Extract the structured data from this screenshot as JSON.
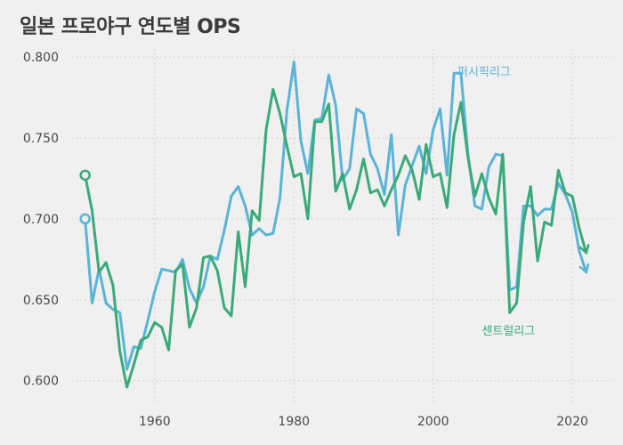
{
  "chart_data": {
    "type": "line",
    "title": "일본 프로야구 연도별 OPS",
    "xlabel": "",
    "ylabel": "",
    "xlim": [
      1948,
      2026
    ],
    "ylim": [
      0.585,
      0.805
    ],
    "x_ticks": [
      1960,
      1980,
      2000,
      2020
    ],
    "y_ticks": [
      0.6,
      0.65,
      0.7,
      0.75,
      0.8
    ],
    "y_tick_labels": [
      "0.600",
      "0.650",
      "0.700",
      "0.750",
      "0.800"
    ],
    "grid": true,
    "series": [
      {
        "name": "퍼시픽리그",
        "color": "#5ab4d8",
        "x": [
          1950,
          1951,
          1952,
          1953,
          1954,
          1955,
          1956,
          1957,
          1958,
          1959,
          1960,
          1961,
          1962,
          1963,
          1964,
          1965,
          1966,
          1967,
          1968,
          1969,
          1970,
          1971,
          1972,
          1973,
          1974,
          1975,
          1976,
          1977,
          1978,
          1979,
          1980,
          1981,
          1982,
          1983,
          1984,
          1985,
          1986,
          1987,
          1988,
          1989,
          1990,
          1991,
          1992,
          1993,
          1994,
          1995,
          1996,
          1997,
          1998,
          1999,
          2000,
          2001,
          2002,
          2003,
          2004,
          2005,
          2006,
          2007,
          2008,
          2009,
          2010,
          2011,
          2012,
          2013,
          2014,
          2015,
          2016,
          2017,
          2018,
          2019,
          2020,
          2021,
          2022
        ],
        "values": [
          0.7,
          0.648,
          0.669,
          0.648,
          0.644,
          0.642,
          0.607,
          0.621,
          0.62,
          0.637,
          0.655,
          0.669,
          0.668,
          0.667,
          0.675,
          0.657,
          0.648,
          0.658,
          0.677,
          0.675,
          0.693,
          0.714,
          0.72,
          0.708,
          0.69,
          0.694,
          0.69,
          0.691,
          0.713,
          0.767,
          0.797,
          0.748,
          0.728,
          0.761,
          0.762,
          0.789,
          0.77,
          0.724,
          0.731,
          0.768,
          0.765,
          0.74,
          0.731,
          0.715,
          0.752,
          0.69,
          0.721,
          0.733,
          0.745,
          0.728,
          0.755,
          0.768,
          0.727,
          0.79,
          0.79,
          0.74,
          0.708,
          0.706,
          0.732,
          0.74,
          0.739,
          0.656,
          0.658,
          0.708,
          0.708,
          0.702,
          0.706,
          0.706,
          0.722,
          0.715,
          0.704,
          0.68,
          0.667
        ]
      },
      {
        "name": "센트럴리그",
        "color": "#3aaa78",
        "x": [
          1950,
          1951,
          1952,
          1953,
          1954,
          1955,
          1956,
          1957,
          1958,
          1959,
          1960,
          1961,
          1962,
          1963,
          1964,
          1965,
          1966,
          1967,
          1968,
          1969,
          1970,
          1971,
          1972,
          1973,
          1974,
          1975,
          1976,
          1977,
          1978,
          1979,
          1980,
          1981,
          1982,
          1983,
          1984,
          1985,
          1986,
          1987,
          1988,
          1989,
          1990,
          1991,
          1992,
          1993,
          1994,
          1995,
          1996,
          1997,
          1998,
          1999,
          2000,
          2001,
          2002,
          2003,
          2004,
          2005,
          2006,
          2007,
          2008,
          2009,
          2010,
          2011,
          2012,
          2013,
          2014,
          2015,
          2016,
          2017,
          2018,
          2019,
          2020,
          2021,
          2022
        ],
        "values": [
          0.727,
          0.705,
          0.667,
          0.673,
          0.659,
          0.618,
          0.596,
          0.61,
          0.625,
          0.627,
          0.636,
          0.633,
          0.619,
          0.668,
          0.672,
          0.633,
          0.645,
          0.676,
          0.677,
          0.668,
          0.645,
          0.64,
          0.692,
          0.658,
          0.705,
          0.699,
          0.755,
          0.78,
          0.765,
          0.745,
          0.726,
          0.728,
          0.7,
          0.76,
          0.76,
          0.771,
          0.717,
          0.728,
          0.706,
          0.718,
          0.737,
          0.716,
          0.718,
          0.708,
          0.718,
          0.727,
          0.739,
          0.73,
          0.712,
          0.746,
          0.726,
          0.728,
          0.707,
          0.752,
          0.772,
          0.738,
          0.714,
          0.728,
          0.713,
          0.703,
          0.74,
          0.642,
          0.648,
          0.698,
          0.72,
          0.674,
          0.698,
          0.696,
          0.73,
          0.716,
          0.714,
          0.694,
          0.679
        ]
      }
    ]
  }
}
